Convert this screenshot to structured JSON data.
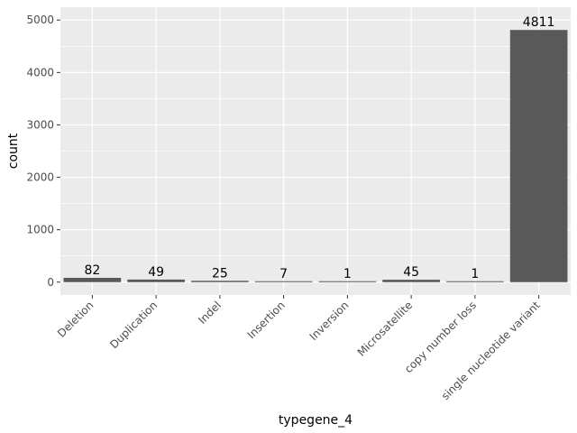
{
  "chart_data": {
    "type": "bar",
    "categories": [
      "Deletion",
      "Duplication",
      "Indel",
      "Insertion",
      "Inversion",
      "Microsatellite",
      "copy number loss",
      "single nucleotide variant"
    ],
    "values": [
      82,
      49,
      25,
      7,
      1,
      45,
      1,
      4811
    ],
    "data_labels": [
      "82",
      "49",
      "25",
      "7",
      "1",
      "45",
      "1",
      "4811"
    ],
    "xlabel": "typegene_4",
    "ylabel": "count",
    "ylim": [
      -245,
      5000
    ],
    "yticks": [
      0,
      1000,
      2000,
      3000,
      4000,
      5000
    ],
    "ytick_labels": [
      "0",
      "1000",
      "2000",
      "3000",
      "4000",
      "5000"
    ],
    "grid": true,
    "colors": {
      "bar": "#595959",
      "panel": "#ebebeb",
      "grid": "#ffffff",
      "tick": "#333333"
    }
  }
}
